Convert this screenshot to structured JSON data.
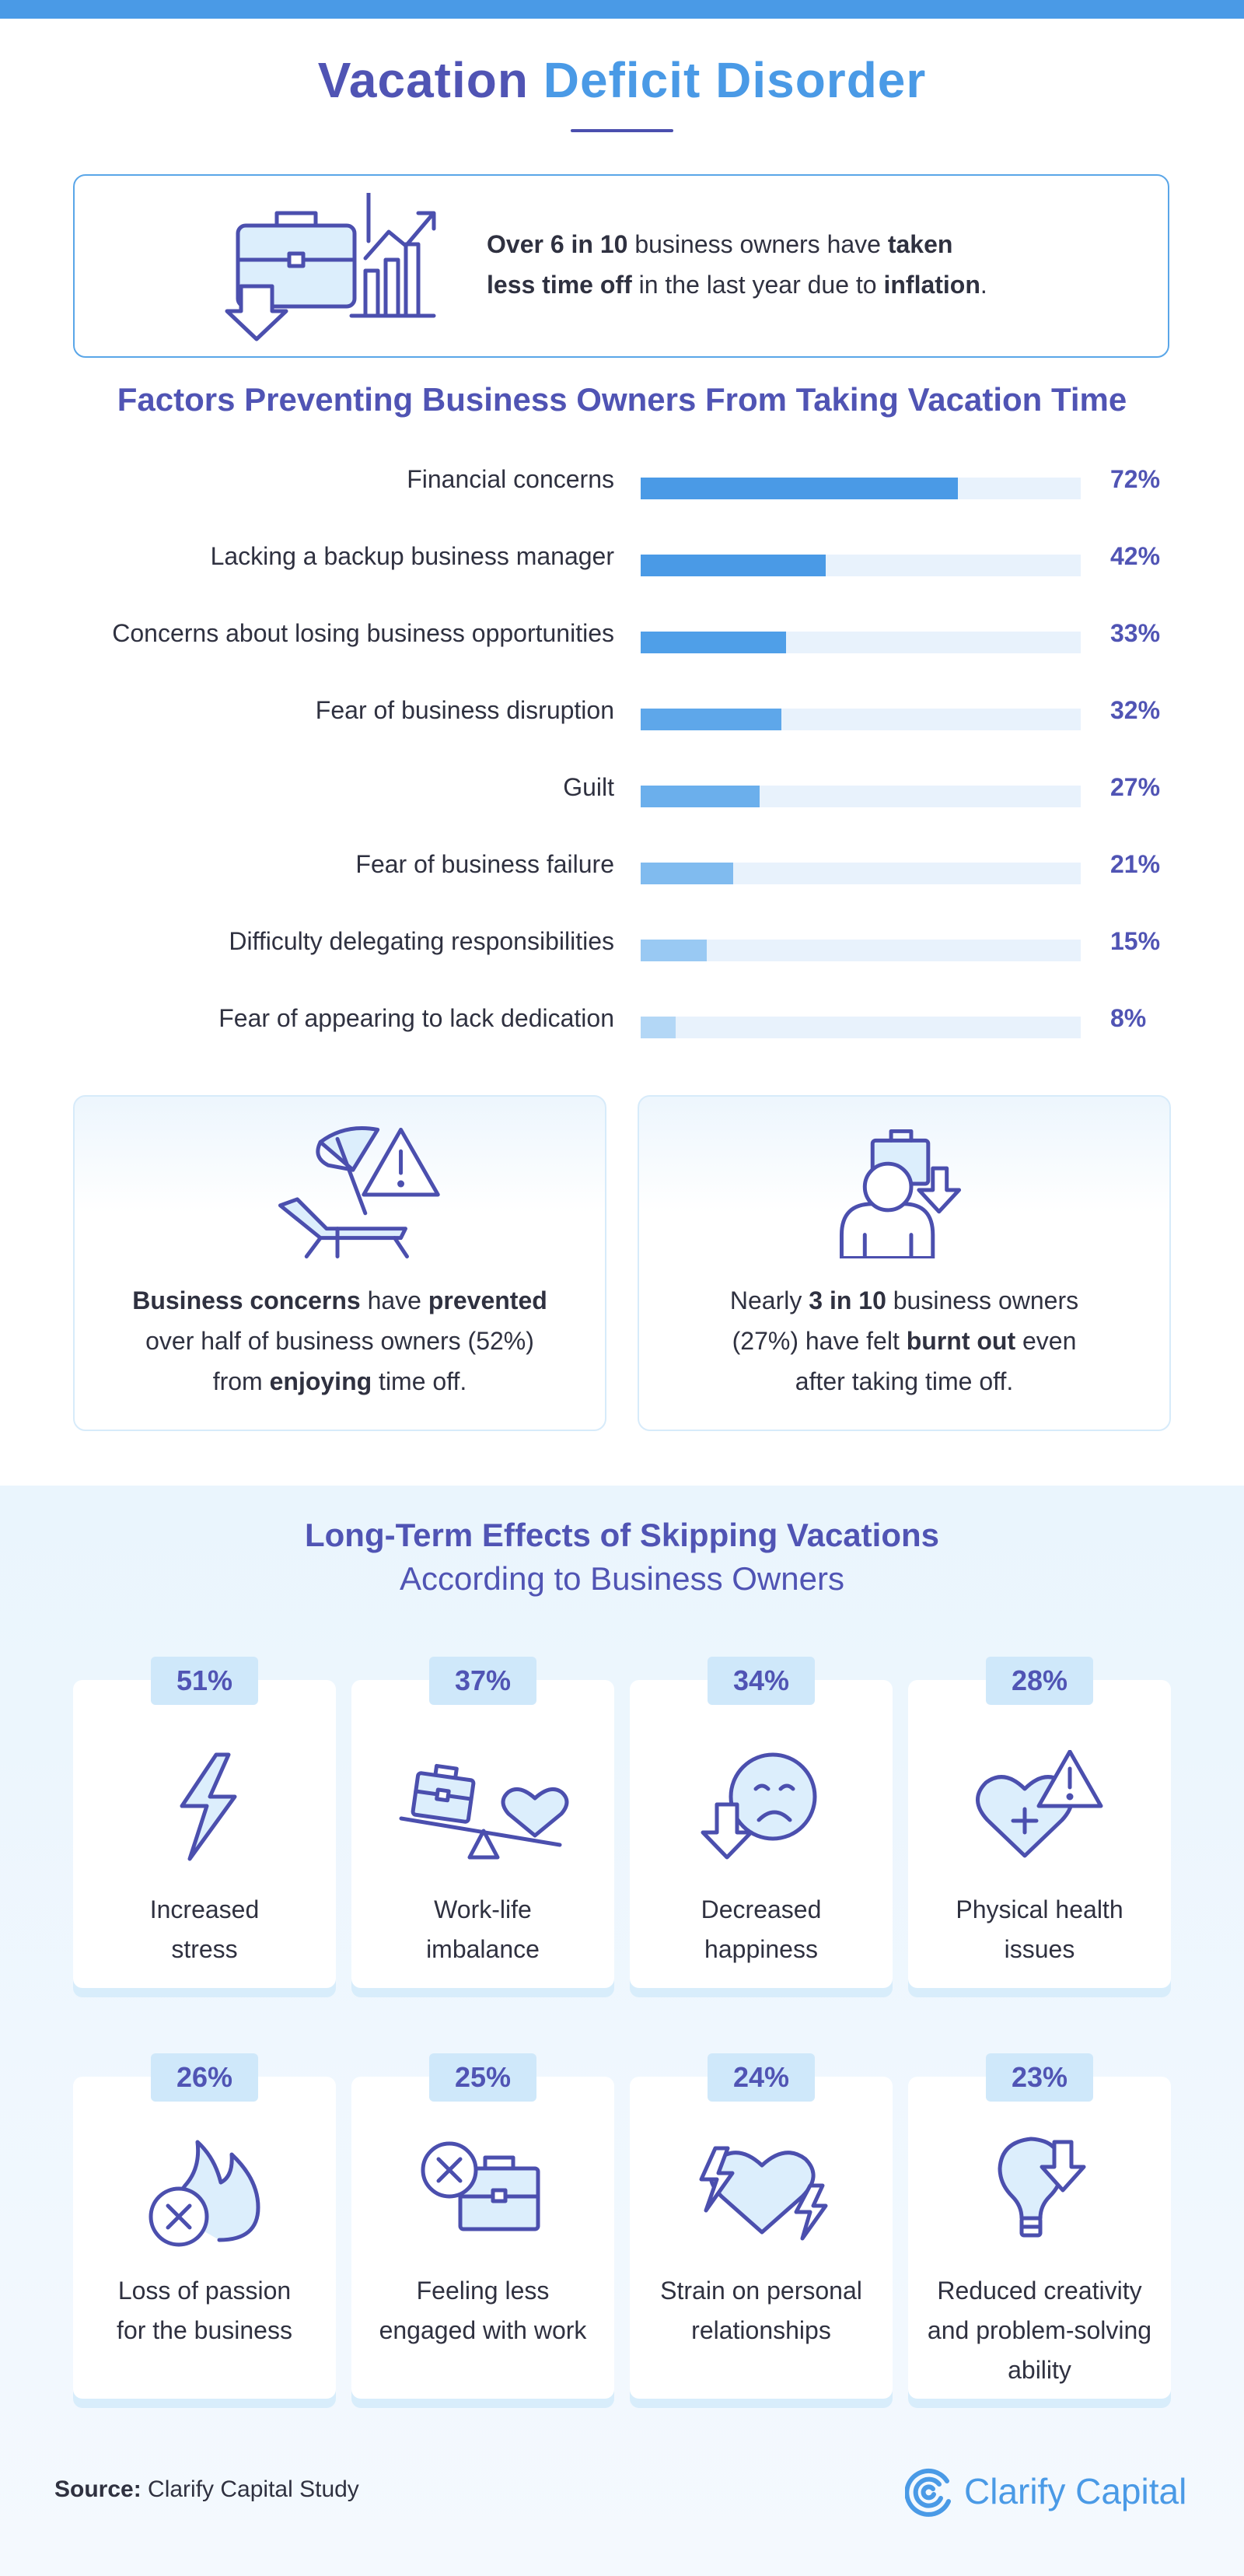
{
  "title": {
    "part1": "Vacation ",
    "part2": "Deficit Disorder"
  },
  "intro_stat": {
    "icon": "briefcase-chart-down-icon",
    "segments": [
      {
        "text": "Over 6 in 10",
        "bold": true
      },
      {
        "text": " business owners have ",
        "bold": false
      },
      {
        "text": "taken",
        "bold": true
      },
      {
        "text": "\n",
        "bold": false
      },
      {
        "text": "less time off",
        "bold": true
      },
      {
        "text": " in the last year due to ",
        "bold": false
      },
      {
        "text": "inflation",
        "bold": true
      },
      {
        "text": ".",
        "bold": false
      }
    ]
  },
  "factors_title": "Factors Preventing Business Owners From Taking Vacation Time",
  "chart_data": {
    "type": "bar",
    "orientation": "horizontal",
    "title": "Factors Preventing Business Owners From Taking Vacation Time",
    "categories": [
      "Financial concerns",
      "Lacking a backup business manager",
      "Concerns about losing business opportunities",
      "Fear of business disruption",
      "Guilt",
      "Fear of business failure",
      "Difficulty delegating responsibilities",
      "Fear of appearing to lack dedication"
    ],
    "values": [
      72,
      42,
      33,
      32,
      27,
      21,
      15,
      8
    ],
    "value_labels": [
      "72%",
      "42%",
      "33%",
      "32%",
      "27%",
      "21%",
      "15%",
      "8%"
    ],
    "xlim": [
      0,
      100
    ],
    "grid": false,
    "colors": [
      "#4a9ae6",
      "#4a9ae6",
      "#4f9fe8",
      "#5ea7ea",
      "#6bafec",
      "#80bbef",
      "#99c9f3",
      "#b3d7f6"
    ],
    "track_color": "#e8f2fc"
  },
  "cards": [
    {
      "icon": "beach-chair-warning-icon",
      "segments": [
        {
          "text": "Business concerns",
          "bold": true
        },
        {
          "text": " have ",
          "bold": false
        },
        {
          "text": "prevented",
          "bold": true
        },
        {
          "text": "\nover half of business owners (52%)\nfrom ",
          "bold": false
        },
        {
          "text": "enjoying",
          "bold": true
        },
        {
          "text": " time off.",
          "bold": false
        }
      ]
    },
    {
      "icon": "person-briefcase-down-icon",
      "segments": [
        {
          "text": "Nearly ",
          "bold": false
        },
        {
          "text": "3 in 10",
          "bold": true
        },
        {
          "text": " business owners\n(27%) have felt ",
          "bold": false
        },
        {
          "text": "burnt out",
          "bold": true
        },
        {
          "text": " even\nafter taking time off.",
          "bold": false
        }
      ]
    }
  ],
  "effects": {
    "title": "Long-Term Effects of Skipping Vacations",
    "subtitle": "According to Business Owners",
    "items": [
      {
        "pct": "51%",
        "label": "Increased\nstress",
        "icon": "lightning-icon"
      },
      {
        "pct": "37%",
        "label": "Work-life\nimbalance",
        "icon": "seesaw-briefcase-heart-icon"
      },
      {
        "pct": "34%",
        "label": "Decreased\nhappiness",
        "icon": "sad-face-down-arrow-icon"
      },
      {
        "pct": "28%",
        "label": "Physical health\nissues",
        "icon": "heart-warning-icon"
      },
      {
        "pct": "26%",
        "label": "Loss of passion\nfor the business",
        "icon": "flame-x-icon"
      },
      {
        "pct": "25%",
        "label": "Feeling less\nengaged with work",
        "icon": "briefcase-x-icon"
      },
      {
        "pct": "24%",
        "label": "Strain on personal\nrelationships",
        "icon": "broken-heart-lightning-icon"
      },
      {
        "pct": "23%",
        "label": "Reduced creativity\nand problem-solving\nability",
        "icon": "lightbulb-down-arrow-icon"
      }
    ]
  },
  "source": {
    "label": "Source:",
    "text": " Clarify Capital Study"
  },
  "brand": {
    "name": "Clarify Capital",
    "icon": "clarify-capital-logo-icon",
    "color": "#4a9ae6"
  },
  "colors": {
    "accent": "#4a9ae6",
    "heading": "#5054b4",
    "icon_stroke": "#4b4fae",
    "icon_fill": "#dceefc"
  }
}
